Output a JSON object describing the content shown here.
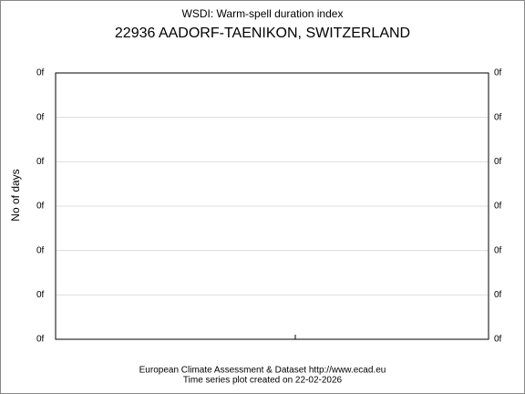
{
  "header": {
    "title": "WSDI: Warm-spell duration index",
    "station": "22936 AADORF-TAENIKON, SWITZERLAND"
  },
  "plot": {
    "y_label": "No of days",
    "left_ticks": [
      "0f",
      "0f",
      "0f",
      "0f",
      "0f",
      "0f",
      "0f"
    ],
    "right_ticks": [
      "0f",
      "0f",
      "0f",
      "0f",
      "0f",
      "0f",
      "0f"
    ]
  },
  "footer": {
    "source": "European Climate Assessment & Dataset  http://www.ecad.eu",
    "created": "Time series plot created on 22-02-2026"
  }
}
